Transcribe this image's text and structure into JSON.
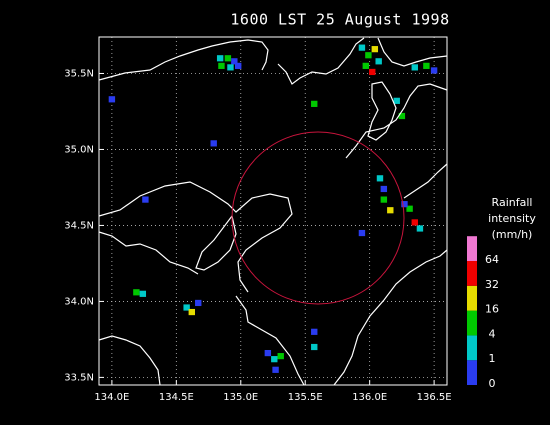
{
  "chart_data": {
    "type": "map",
    "title": "1600 LST 25 August 1998",
    "xlim": [
      133.9,
      136.6
    ],
    "ylim": [
      33.45,
      35.74
    ],
    "xticks": [
      {
        "value": 134.0,
        "label": "134.0E"
      },
      {
        "value": 134.5,
        "label": "134.5E"
      },
      {
        "value": 135.0,
        "label": "135.0E"
      },
      {
        "value": 135.5,
        "label": "135.5E"
      },
      {
        "value": 136.0,
        "label": "136.0E"
      },
      {
        "value": 136.5,
        "label": "136.5E"
      }
    ],
    "yticks": [
      {
        "value": 33.5,
        "label": "33.5N"
      },
      {
        "value": 34.0,
        "label": "34.0N"
      },
      {
        "value": 34.5,
        "label": "34.5N"
      },
      {
        "value": 35.0,
        "label": "35.0N"
      },
      {
        "value": 35.5,
        "label": "35.5N"
      }
    ],
    "grid": true,
    "colorbar": {
      "title": [
        "Rainfall",
        "intensity",
        "(mm/h)"
      ],
      "levels": [
        0,
        1,
        4,
        16,
        32,
        64
      ],
      "colors": [
        "#2a3cf0",
        "#00c8c8",
        "#00c800",
        "#e6dc00",
        "#f00000",
        "#f078d2"
      ]
    },
    "cells": [
      {
        "lon": 134.84,
        "lat": 35.6,
        "value": 2
      },
      {
        "lon": 134.9,
        "lat": 35.6,
        "value": 8
      },
      {
        "lon": 134.95,
        "lat": 35.58,
        "value": 0.5
      },
      {
        "lon": 134.85,
        "lat": 35.55,
        "value": 8
      },
      {
        "lon": 134.92,
        "lat": 35.54,
        "value": 2
      },
      {
        "lon": 134.98,
        "lat": 35.55,
        "value": 0.5
      },
      {
        "lon": 135.94,
        "lat": 35.67,
        "value": 2
      },
      {
        "lon": 135.99,
        "lat": 35.62,
        "value": 8
      },
      {
        "lon": 136.04,
        "lat": 35.66,
        "value": 20
      },
      {
        "lon": 135.97,
        "lat": 35.55,
        "value": 8
      },
      {
        "lon": 136.02,
        "lat": 35.51,
        "value": 40
      },
      {
        "lon": 136.07,
        "lat": 35.58,
        "value": 2
      },
      {
        "lon": 136.35,
        "lat": 35.54,
        "value": 2
      },
      {
        "lon": 136.44,
        "lat": 35.55,
        "value": 8
      },
      {
        "lon": 136.5,
        "lat": 35.52,
        "value": 0.5
      },
      {
        "lon": 136.08,
        "lat": 34.81,
        "value": 2
      },
      {
        "lon": 136.11,
        "lat": 34.67,
        "value": 8
      },
      {
        "lon": 136.16,
        "lat": 34.6,
        "value": 20
      },
      {
        "lon": 136.11,
        "lat": 34.74,
        "value": 0.5
      },
      {
        "lon": 136.31,
        "lat": 34.61,
        "value": 8
      },
      {
        "lon": 136.35,
        "lat": 34.52,
        "value": 40
      },
      {
        "lon": 136.39,
        "lat": 34.48,
        "value": 2
      },
      {
        "lon": 136.27,
        "lat": 34.64,
        "value": 0.5
      },
      {
        "lon": 136.21,
        "lat": 35.32,
        "value": 2
      },
      {
        "lon": 136.25,
        "lat": 35.22,
        "value": 8
      },
      {
        "lon": 135.57,
        "lat": 35.3,
        "value": 8
      },
      {
        "lon": 134.19,
        "lat": 34.06,
        "value": 8
      },
      {
        "lon": 134.24,
        "lat": 34.05,
        "value": 2
      },
      {
        "lon": 134.58,
        "lat": 33.96,
        "value": 2
      },
      {
        "lon": 134.62,
        "lat": 33.93,
        "value": 20
      },
      {
        "lon": 134.67,
        "lat": 33.99,
        "value": 0.5
      },
      {
        "lon": 135.21,
        "lat": 33.66,
        "value": 0.5
      },
      {
        "lon": 135.26,
        "lat": 33.62,
        "value": 2
      },
      {
        "lon": 135.31,
        "lat": 33.64,
        "value": 8
      },
      {
        "lon": 135.27,
        "lat": 33.55,
        "value": 0.5
      },
      {
        "lon": 135.57,
        "lat": 33.8,
        "value": 0.5
      },
      {
        "lon": 135.57,
        "lat": 33.7,
        "value": 2
      },
      {
        "lon": 134.0,
        "lat": 35.33,
        "value": 0.5
      },
      {
        "lon": 134.79,
        "lat": 35.04,
        "value": 0.5
      },
      {
        "lon": 134.26,
        "lat": 34.67,
        "value": 0.5
      },
      {
        "lon": 135.94,
        "lat": 34.45,
        "value": 0.5
      }
    ]
  }
}
